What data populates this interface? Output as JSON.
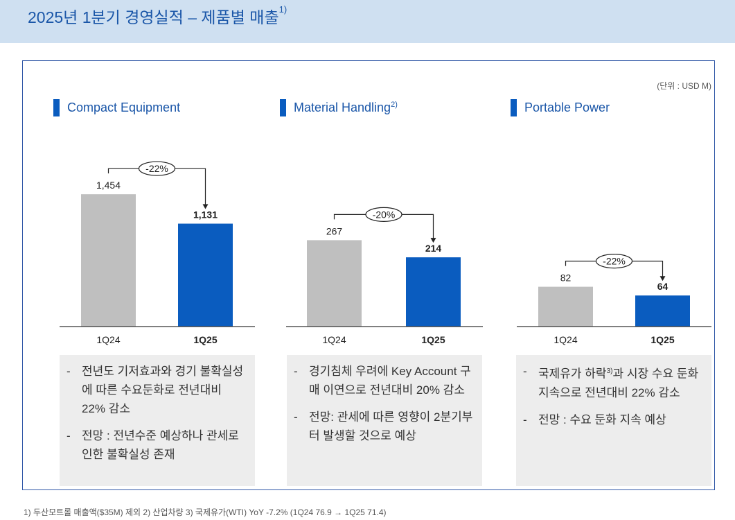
{
  "header": {
    "title": "2025년 1분기 경영실적 – 제품별 매출",
    "title_sup": "1)"
  },
  "unit": "(단위 : USD M)",
  "colors": {
    "prev": "#bfbfbf",
    "curr": "#0a5cbf",
    "accent": "#1a56a8"
  },
  "chart_data": [
    {
      "type": "bar",
      "title": "Compact Equipment",
      "categories": [
        "1Q24",
        "1Q25"
      ],
      "values": [
        1454,
        1131
      ],
      "value_labels": [
        "1,454",
        "1,131"
      ],
      "change_label": "-22%",
      "ylim": [
        0,
        1600
      ]
    },
    {
      "type": "bar",
      "title": "Material Handling",
      "title_sup": "2)",
      "categories": [
        "1Q24",
        "1Q25"
      ],
      "values": [
        267,
        214
      ],
      "value_labels": [
        "267",
        "214"
      ],
      "change_label": "-20%",
      "ylim": [
        0,
        450
      ]
    },
    {
      "type": "bar",
      "title": "Portable Power",
      "categories": [
        "1Q24",
        "1Q25"
      ],
      "values": [
        82,
        64
      ],
      "value_labels": [
        "82",
        "64"
      ],
      "change_label": "-22%",
      "ylim": [
        0,
        300
      ]
    }
  ],
  "sections": [
    {
      "bullets": [
        {
          "pre": "전년도 기저효과와 경기 불확실성에 따른 수요둔화로 전년대비 22% 감소",
          "sup": "",
          "post": ""
        },
        {
          "pre": "전망 : 전년수준 예상하나 관세로 인한 불확실성 존재",
          "sup": "",
          "post": ""
        }
      ]
    },
    {
      "bullets": [
        {
          "pre": "경기침체 우려에 Key Account 구매 이연으로 전년대비 20% 감소",
          "sup": "",
          "post": ""
        },
        {
          "pre": "전망: 관세에 따른 영향이 2분기부터 발생할 것으로 예상",
          "sup": "",
          "post": ""
        }
      ]
    },
    {
      "bullets": [
        {
          "pre": "국제유가 하락",
          "sup": "3)",
          "post": "과 시장 수요 둔화 지속으로 전년대비 22% 감소"
        },
        {
          "pre": "전망 : 수요 둔화 지속 예상",
          "sup": "",
          "post": ""
        }
      ]
    }
  ],
  "bullet_dash": "-",
  "footnote": "1) 두산모트롤 매출액($35M) 제외    2) 산업차량    3) 국제유가(WTI) YoY -7.2% (1Q24 76.9 → 1Q25 71.4)"
}
